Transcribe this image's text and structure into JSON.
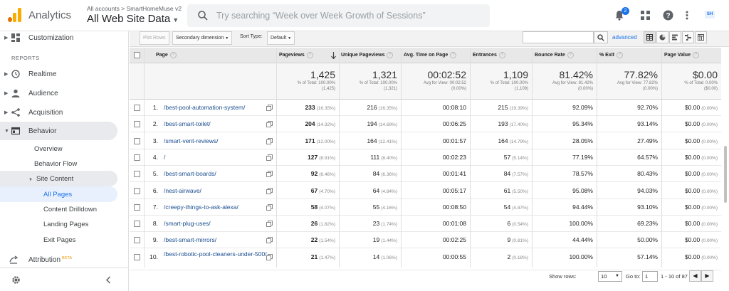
{
  "app": {
    "name": "Analytics",
    "breadcrumb": "All accounts > SmartHomeMuse v2",
    "view": "All Web Site Data",
    "search_placeholder": "Try searching “Week over Week Growth of Sessions”",
    "notifications": "2",
    "account_chip": "SH"
  },
  "sidebar": {
    "customization": "Customization",
    "reports_label": "REPORTS",
    "realtime": "Realtime",
    "audience": "Audience",
    "acquisition": "Acquisition",
    "behavior": "Behavior",
    "overview": "Overview",
    "behavior_flow": "Behavior Flow",
    "site_content": "Site Content",
    "all_pages": "All Pages",
    "content_drilldown": "Content Drilldown",
    "landing_pages": "Landing Pages",
    "exit_pages": "Exit Pages",
    "attribution": "Attribution",
    "beta": "BETA"
  },
  "toolbar": {
    "plot_rows": "Plot Rows",
    "secondary_dimension": "Secondary dimension",
    "sort_type_label": "Sort Type:",
    "sort_type_value": "Default",
    "advanced": "advanced"
  },
  "table": {
    "headers": {
      "page": "Page",
      "pageviews": "Pageviews",
      "unique_pageviews": "Unique Pageviews",
      "avg_time": "Avg. Time on Page",
      "entrances": "Entrances",
      "bounce_rate": "Bounce Rate",
      "exit": "% Exit",
      "page_value": "Page Value"
    },
    "totals": {
      "pageviews": {
        "value": "1,425",
        "sub1": "% of Total: 100.00%",
        "sub2": "(1,425)"
      },
      "unique_pageviews": {
        "value": "1,321",
        "sub1": "% of Total: 100.00%",
        "sub2": "(1,321)"
      },
      "avg_time": {
        "value": "00:02:52",
        "sub1": "Avg for View: 00:02:52",
        "sub2": "(0.00%)"
      },
      "entrances": {
        "value": "1,109",
        "sub1": "% of Total: 100.00%",
        "sub2": "(1,109)"
      },
      "bounce_rate": {
        "value": "81.42%",
        "sub1": "Avg for View: 81.42%",
        "sub2": "(0.00%)"
      },
      "exit": {
        "value": "77.82%",
        "sub1": "Avg for View: 77.82%",
        "sub2": "(0.00%)"
      },
      "page_value": {
        "value": "$0.00",
        "sub1": "% of Total: 0.00%",
        "sub2": "($0.00)"
      }
    },
    "rows": [
      {
        "rank": "1.",
        "page": "/best-pool-automation-system/",
        "pv": "233",
        "pv_pct": "(16.35%)",
        "upv": "216",
        "upv_pct": "(16.35%)",
        "time": "00:08:10",
        "ent": "215",
        "ent_pct": "(19.39%)",
        "bounce": "92.09%",
        "exit": "92.70%",
        "value": "$0.00",
        "value_pct": "(0.00%)"
      },
      {
        "rank": "2.",
        "page": "/best-smart-toilet/",
        "pv": "204",
        "pv_pct": "(14.32%)",
        "upv": "194",
        "upv_pct": "(14.69%)",
        "time": "00:06:25",
        "ent": "193",
        "ent_pct": "(17.40%)",
        "bounce": "95.34%",
        "exit": "93.14%",
        "value": "$0.00",
        "value_pct": "(0.00%)"
      },
      {
        "rank": "3.",
        "page": "/smart-vent-reviews/",
        "pv": "171",
        "pv_pct": "(12.00%)",
        "upv": "164",
        "upv_pct": "(12.41%)",
        "time": "00:01:57",
        "ent": "164",
        "ent_pct": "(14.79%)",
        "bounce": "28.05%",
        "exit": "27.49%",
        "value": "$0.00",
        "value_pct": "(0.00%)"
      },
      {
        "rank": "4.",
        "page": "/",
        "pv": "127",
        "pv_pct": "(8.91%)",
        "upv": "111",
        "upv_pct": "(8.40%)",
        "time": "00:02:23",
        "ent": "57",
        "ent_pct": "(5.14%)",
        "bounce": "77.19%",
        "exit": "64.57%",
        "value": "$0.00",
        "value_pct": "(0.00%)"
      },
      {
        "rank": "5.",
        "page": "/best-smart-boards/",
        "pv": "92",
        "pv_pct": "(6.46%)",
        "upv": "84",
        "upv_pct": "(6.36%)",
        "time": "00:01:41",
        "ent": "84",
        "ent_pct": "(7.57%)",
        "bounce": "78.57%",
        "exit": "80.43%",
        "value": "$0.00",
        "value_pct": "(0.00%)"
      },
      {
        "rank": "6.",
        "page": "/nest-airwave/",
        "pv": "67",
        "pv_pct": "(4.70%)",
        "upv": "64",
        "upv_pct": "(4.84%)",
        "time": "00:05:17",
        "ent": "61",
        "ent_pct": "(5.50%)",
        "bounce": "95.08%",
        "exit": "94.03%",
        "value": "$0.00",
        "value_pct": "(0.00%)"
      },
      {
        "rank": "7.",
        "page": "/creepy-things-to-ask-alexa/",
        "pv": "58",
        "pv_pct": "(4.07%)",
        "upv": "55",
        "upv_pct": "(4.16%)",
        "time": "00:08:50",
        "ent": "54",
        "ent_pct": "(4.87%)",
        "bounce": "94.44%",
        "exit": "93.10%",
        "value": "$0.00",
        "value_pct": "(0.00%)"
      },
      {
        "rank": "8.",
        "page": "/smart-plug-uses/",
        "pv": "26",
        "pv_pct": "(1.82%)",
        "upv": "23",
        "upv_pct": "(1.74%)",
        "time": "00:01:08",
        "ent": "6",
        "ent_pct": "(0.54%)",
        "bounce": "100.00%",
        "exit": "69.23%",
        "value": "$0.00",
        "value_pct": "(0.00%)"
      },
      {
        "rank": "9.",
        "page": "/best-smart-mirrors/",
        "pv": "22",
        "pv_pct": "(1.54%)",
        "upv": "19",
        "upv_pct": "(1.44%)",
        "time": "00:02:25",
        "ent": "9",
        "ent_pct": "(0.81%)",
        "bounce": "44.44%",
        "exit": "50.00%",
        "value": "$0.00",
        "value_pct": "(0.00%)"
      },
      {
        "rank": "10.",
        "page": "/best-robotic-pool-cleaners-under-500/",
        "pv": "21",
        "pv_pct": "(1.47%)",
        "upv": "14",
        "upv_pct": "(1.06%)",
        "time": "00:00:55",
        "ent": "2",
        "ent_pct": "(0.18%)",
        "bounce": "100.00%",
        "exit": "57.14%",
        "value": "$0.00",
        "value_pct": "(0.00%)"
      }
    ]
  },
  "pager": {
    "show_rows_label": "Show rows:",
    "show_rows_value": "10",
    "goto_label": "Go to:",
    "goto_value": "1",
    "range": "1 - 10 of 87"
  },
  "colors": {
    "accent": "#1a73e8",
    "logo_orange": "#f9ab00",
    "logo_dark": "#e37400"
  }
}
